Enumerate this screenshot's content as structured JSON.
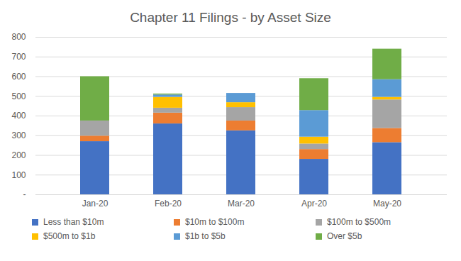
{
  "chart_data": {
    "type": "bar",
    "stacked": true,
    "title": "Chapter 11 Filings - by Asset Size",
    "categories": [
      "Jan-20",
      "Feb-20",
      "Mar-20",
      "Apr-20",
      "May-20"
    ],
    "series": [
      {
        "name": "Less than $10m",
        "color": "#4472c4",
        "values": [
          270,
          360,
          325,
          180,
          265
        ]
      },
      {
        "name": "$10m to $100m",
        "color": "#ed7d31",
        "values": [
          28,
          55,
          50,
          50,
          72
        ]
      },
      {
        "name": "$100m to $500m",
        "color": "#a5a5a5",
        "values": [
          77,
          25,
          68,
          28,
          145
        ]
      },
      {
        "name": "$500m to $1b",
        "color": "#ffc000",
        "values": [
          0,
          55,
          25,
          35,
          13
        ]
      },
      {
        "name": "$1b to $5b",
        "color": "#5b9bd5",
        "values": [
          0,
          12,
          47,
          135,
          90
        ]
      },
      {
        "name": "Over $5b",
        "color": "#70ad47",
        "values": [
          225,
          5,
          0,
          162,
          155
        ]
      }
    ],
    "ylim": [
      0,
      800
    ],
    "yticks": [
      {
        "value": 0,
        "label": "-"
      },
      100,
      200,
      300,
      400,
      500,
      600,
      700,
      800
    ],
    "grid": true,
    "legend": "bottom"
  }
}
